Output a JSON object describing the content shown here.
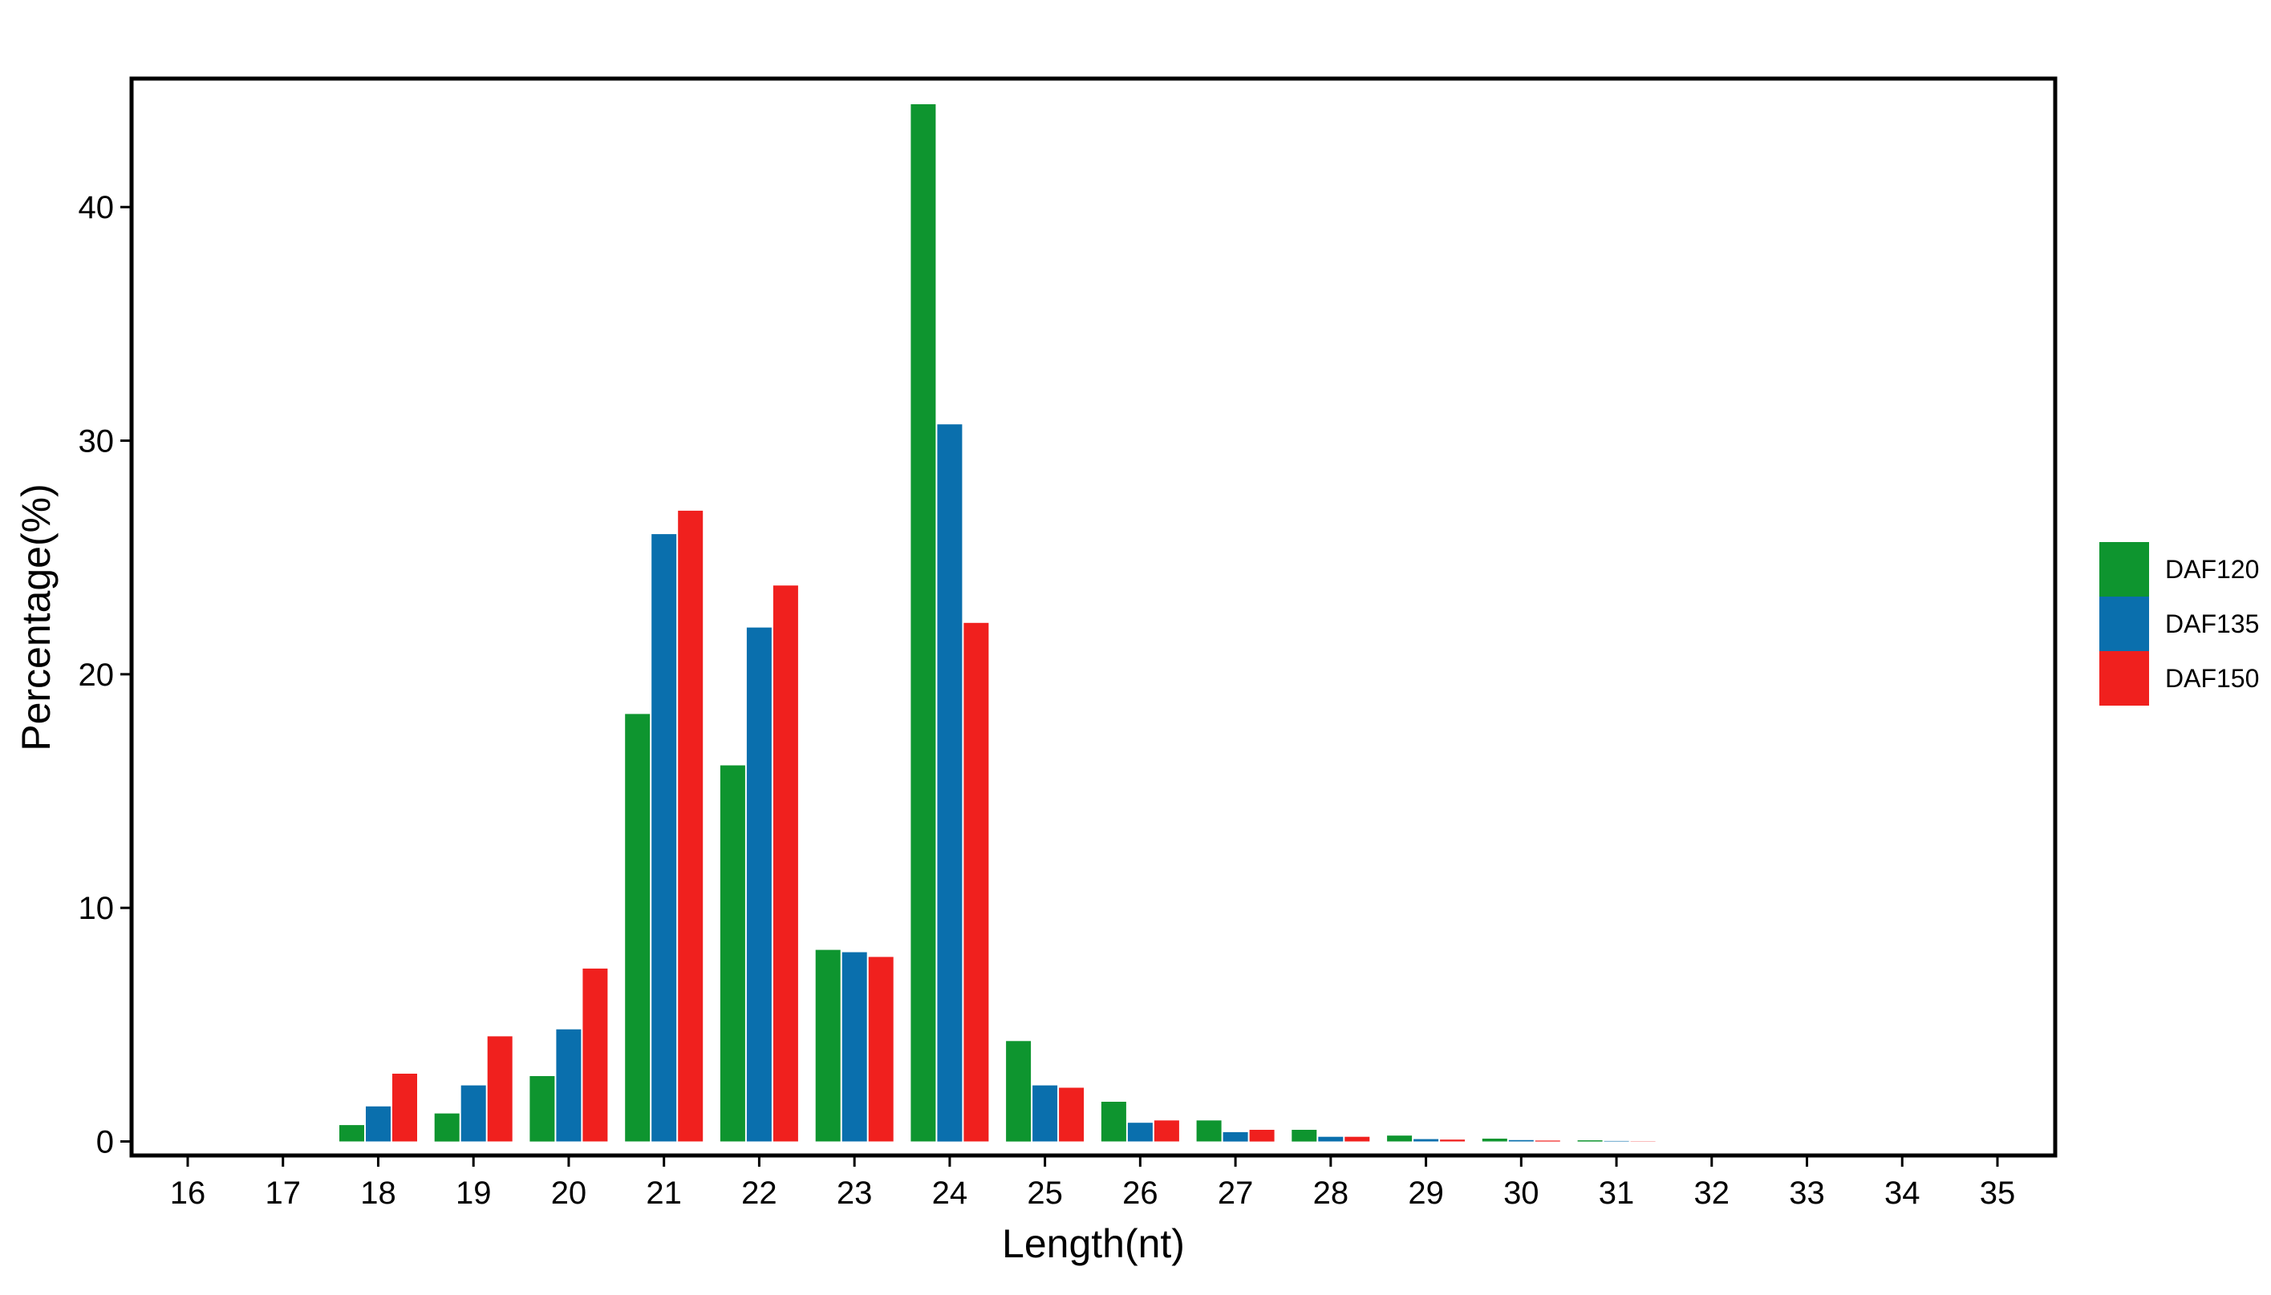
{
  "chart_data": {
    "type": "bar",
    "title": "",
    "xlabel": "Length(nt)",
    "ylabel": "Percentage(%)",
    "categories": [
      "16",
      "17",
      "18",
      "19",
      "20",
      "21",
      "22",
      "23",
      "24",
      "25",
      "26",
      "27",
      "28",
      "29",
      "30",
      "31",
      "32",
      "33",
      "34",
      "35"
    ],
    "ylim": [
      -0.6,
      45.5
    ],
    "yticks": [
      "0",
      "10",
      "20",
      "30",
      "40"
    ],
    "ytick_values": [
      0,
      10,
      20,
      30,
      40
    ],
    "grid": false,
    "legend_position": "right",
    "series": [
      {
        "name": "DAF120",
        "color": "#0e952f",
        "values": [
          0,
          0,
          0.7,
          1.2,
          2.8,
          18.3,
          16.1,
          8.2,
          44.4,
          4.3,
          1.7,
          0.9,
          0.5,
          0.25,
          0.12,
          0.05,
          0,
          0,
          0,
          0
        ]
      },
      {
        "name": "DAF135",
        "color": "#0a6fad",
        "values": [
          0,
          0,
          1.5,
          2.4,
          4.8,
          26.0,
          22.0,
          8.1,
          30.7,
          2.4,
          0.8,
          0.4,
          0.2,
          0.1,
          0.06,
          0.02,
          0,
          0,
          0,
          0
        ]
      },
      {
        "name": "DAF150",
        "color": "#f0201e",
        "values": [
          0,
          0,
          2.9,
          4.5,
          7.4,
          27.0,
          23.8,
          7.9,
          22.2,
          2.3,
          0.9,
          0.5,
          0.2,
          0.08,
          0.04,
          0.01,
          0,
          0,
          0,
          0
        ]
      }
    ]
  }
}
